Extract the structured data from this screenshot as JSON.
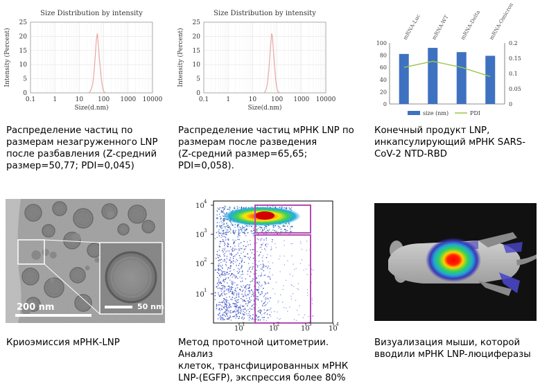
{
  "charts": [
    {
      "type": "line",
      "title": "Size Distribution by intensity",
      "xlabel": "Size(d.nm)",
      "ylabel": "Intensity (Percent)",
      "xscale": "log",
      "xlim": [
        0.1,
        10000
      ],
      "ylim": [
        0,
        25
      ],
      "xticks": [
        0.1,
        1,
        10,
        100,
        1000,
        10000
      ],
      "xtick_labels": [
        "0.1",
        "1",
        "10",
        "100",
        "1000",
        "10000"
      ],
      "yticks": [
        0,
        5,
        10,
        15,
        20,
        25
      ],
      "series_color": "#e8a7a0",
      "x": [
        25,
        30,
        35,
        40,
        45,
        50,
        55,
        60,
        70,
        80,
        90,
        100,
        120
      ],
      "y": [
        0,
        1,
        3,
        7,
        13,
        19,
        21,
        17,
        10,
        5,
        2,
        0.5,
        0
      ]
    },
    {
      "type": "line",
      "title": "Size Distribution by intensity",
      "xlabel": "Size(d.nm)",
      "ylabel": "Intensity (Percent)",
      "xscale": "log",
      "xlim": [
        0.1,
        10000
      ],
      "ylim": [
        0,
        25
      ],
      "xticks": [
        0.1,
        1,
        10,
        100,
        1000,
        10000
      ],
      "xtick_labels": [
        "0.1",
        "1",
        "10",
        "100",
        "1000",
        "10000"
      ],
      "yticks": [
        0,
        5,
        10,
        15,
        20,
        25
      ],
      "series_color": "#e8a7a0",
      "x": [
        30,
        35,
        40,
        45,
        50,
        55,
        60,
        65,
        70,
        80,
        90,
        100,
        110,
        130
      ],
      "y": [
        0,
        1,
        3,
        7,
        12,
        17,
        21,
        20,
        16,
        9,
        4,
        1.5,
        0.5,
        0
      ]
    },
    {
      "type": "bar",
      "categories": [
        "mRNA-Luc",
        "mRNA-WT",
        "mRNA-Delta",
        "mRNA-Omicron"
      ],
      "series": [
        {
          "name": "size (nm)",
          "values": [
            82,
            92,
            85,
            79
          ],
          "color": "#3f71c1",
          "axis": "left"
        },
        {
          "name": "PDI",
          "type": "line",
          "values": [
            0.12,
            0.14,
            0.12,
            0.09
          ],
          "color": "#9cc54a",
          "axis": "right"
        }
      ],
      "ylim": [
        0,
        100
      ],
      "yticks": [
        0,
        20,
        40,
        60,
        80,
        100
      ],
      "y2lim": [
        0,
        0.2
      ],
      "y2ticks": [
        "0",
        "0.05",
        "0.1",
        "0.15",
        "0.2"
      ],
      "legend": "bottom"
    }
  ],
  "flow": {
    "xtick_labels": [
      "10",
      "10",
      "10",
      "10"
    ],
    "xtick_exp": [
      "1",
      "2",
      "3",
      "4"
    ],
    "ytick_labels": [
      "10",
      "10",
      "10",
      "10"
    ],
    "ytick_exp": [
      "1",
      "2",
      "3",
      "4"
    ],
    "gate_color": "#b24bb0"
  },
  "cryo": {
    "scale_main": "200 nm",
    "scale_inset": "50 nm"
  },
  "captions": [
    "Распределение частиц по\nразмерам незагруженного LNP\nпосле разбавления (Z-средний\nразмер=50,77; PDI=0,045)",
    "Распределение частиц мРНК LNP по\nразмерам после разведения\n (Z-средний размер=65,65;\nPDI=0,058).",
    "Конечный продукт LNP,\nинкапсулирующий мРНК SARS-\nCoV-2 NTD-RBD",
    "Криоэмиссия мРНК-LNP",
    "Метод проточной цитометрии. Анализ\nклеток, трансфицированных мРНК\nLNP-(EGFP), экспрессия более 80%",
    "Визуализация мыши, которой\nвводили мРНК LNP-люциферазы"
  ]
}
